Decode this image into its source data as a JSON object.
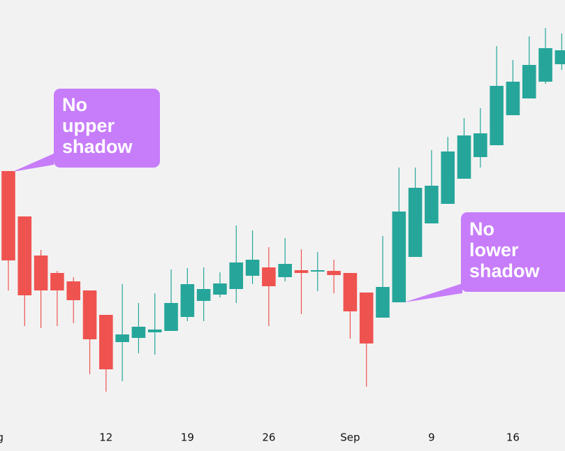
{
  "chart_data": {
    "type": "candlestick",
    "up_color": "#26a69a",
    "down_color": "#ef5350",
    "open": [
      401,
      336,
      280,
      255,
      243,
      230,
      195,
      156,
      162,
      170,
      172,
      192,
      215,
      224,
      232,
      251,
      263,
      249,
      259,
      257,
      258,
      255,
      227,
      191,
      213,
      278,
      326,
      354,
      390,
      421,
      438,
      481,
      505,
      529,
      554
    ],
    "high": [
      401,
      336,
      288,
      258,
      249,
      230,
      195,
      239,
      212,
      226,
      260,
      262,
      263,
      256,
      323,
      316,
      292,
      305,
      289,
      285,
      274,
      255,
      227,
      308,
      406,
      406,
      431,
      450,
      477,
      491,
      580,
      560,
      594,
      606,
      598
    ],
    "low": [
      230,
      179,
      176,
      179,
      183,
      110,
      85,
      100,
      140,
      138,
      172,
      186,
      186,
      220,
      212,
      239,
      179,
      243,
      196,
      229,
      226,
      161,
      92,
      191,
      213,
      278,
      326,
      354,
      390,
      406,
      438,
      481,
      505,
      526,
      546
    ],
    "close": [
      273,
      223,
      230,
      230,
      216,
      160,
      117,
      167,
      178,
      174,
      212,
      239,
      232,
      240,
      270,
      274,
      236,
      268,
      255,
      259,
      252,
      200,
      154,
      235,
      343,
      377,
      380,
      429,
      452,
      455,
      523,
      529,
      553,
      577,
      574
    ],
    "xlim": [
      -0.515,
      34.2
    ],
    "ylim": [
      0,
      646
    ],
    "xticks": [
      {
        "value": -1,
        "label": "Aug"
      },
      {
        "value": 6,
        "label": "12"
      },
      {
        "value": 11,
        "label": "19"
      },
      {
        "value": 16,
        "label": "26"
      },
      {
        "value": 21,
        "label": "Sep"
      },
      {
        "value": 26,
        "label": "9"
      },
      {
        "value": 31,
        "label": "16"
      }
    ],
    "annotations": [
      {
        "lines": [
          "No",
          "upper",
          "shadow"
        ]
      },
      {
        "lines": [
          "No",
          "lower",
          "shadow"
        ]
      }
    ]
  }
}
